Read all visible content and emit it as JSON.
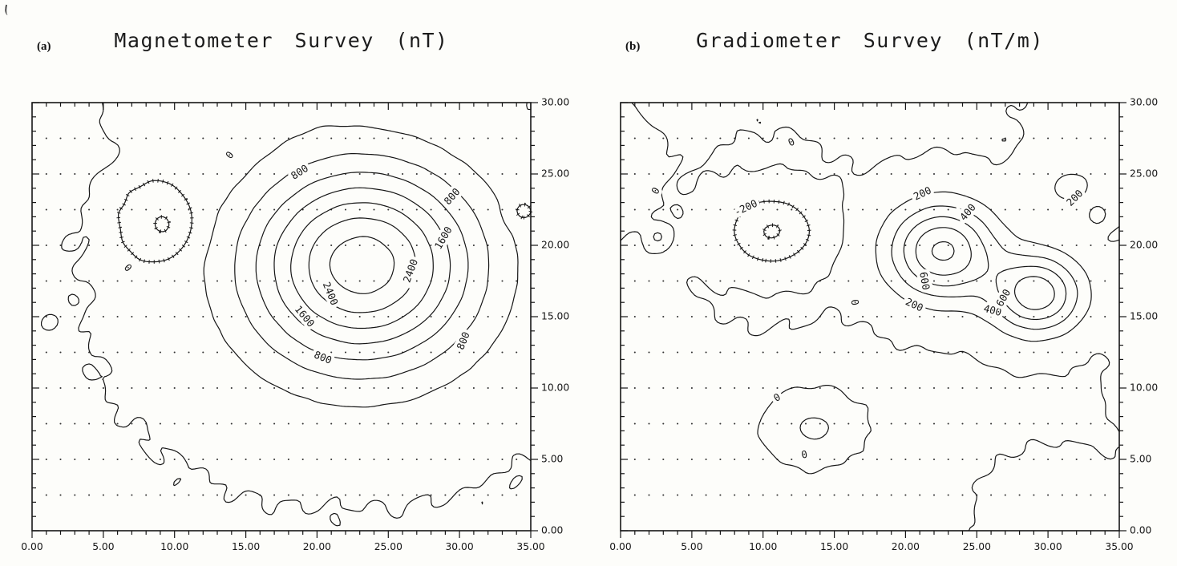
{
  "colors": {
    "ink": "#161616",
    "paper": "#fdfdfa",
    "dot": "#333333"
  },
  "chart_data": [
    {
      "type": "contour",
      "panel_label": "(a)",
      "title": "Magnetometer Survey (nT)",
      "units": "nT",
      "xlabel": "",
      "ylabel": "",
      "xlim": [
        0,
        35
      ],
      "ylim": [
        0,
        30
      ],
      "xtick_major": [
        0,
        5,
        10,
        15,
        20,
        25,
        30,
        35
      ],
      "xtick_labels": [
        "0.00",
        "5.00",
        "10.00",
        "15.00",
        "20.00",
        "25.00",
        "30.00",
        "35.00"
      ],
      "ytick_major": [
        0,
        5,
        10,
        15,
        20,
        25,
        30
      ],
      "ytick_labels": [
        "0.00",
        "5.00",
        "10.00",
        "15.00",
        "20.00",
        "25.00",
        "30.00"
      ],
      "tick_minor_step": 1,
      "contour_interval": 400,
      "levels": [
        -400,
        0,
        400,
        800,
        1200,
        1600,
        2000,
        2400,
        2800
      ],
      "labeled_levels": [
        0,
        800,
        1600,
        2400
      ],
      "hachure_at_or_below": 0,
      "station_grid": {
        "x_start": 1,
        "x_end": 34,
        "x_step": 1,
        "y_start": 2.5,
        "y_end": 27.5,
        "y_step": 2.5
      },
      "field_background": -15,
      "noise_amp": 8,
      "anomaly_sources": [
        {
          "name": "main-positive-anomaly",
          "x": 23.2,
          "y": 18.8,
          "amp": 2950,
          "sx": 5.4,
          "sy": 4.7
        },
        {
          "name": "broad-south-base",
          "x": 22.0,
          "y": 13.5,
          "amp": 200,
          "sx": 7.5,
          "sy": 5.0
        },
        {
          "name": "west-depression",
          "x": 9.3,
          "y": 21.4,
          "amp": -660,
          "sx": 1.55,
          "sy": 1.6
        },
        {
          "name": "west-pedestal",
          "x": 9.0,
          "y": 21.4,
          "amp": 145,
          "sx": 2.4,
          "sy": 2.4
        },
        {
          "name": "north-bump",
          "x": 19.0,
          "y": 31.5,
          "amp": 150,
          "sx": 3.0,
          "sy": 3.0
        },
        {
          "name": "northwest-bump",
          "x": 9.5,
          "y": 31.5,
          "amp": 130,
          "sx": 2.5,
          "sy": 2.5
        },
        {
          "name": "west-spot",
          "x": 2.8,
          "y": 20.2,
          "amp": 45,
          "sx": 0.3,
          "sy": 0.3
        },
        {
          "name": "east-edge-low",
          "x": 34.3,
          "y": 22.3,
          "amp": -320,
          "sx": 0.7,
          "sy": 0.7
        },
        {
          "name": "tiny-west-spot",
          "x": 1.3,
          "y": 14.6,
          "amp": 45,
          "sx": 0.3,
          "sy": 0.3
        }
      ],
      "contour_labels": [
        {
          "text": "0",
          "x": 13.9,
          "y": 26.3,
          "rot": -52
        },
        {
          "text": "800",
          "x": 18.8,
          "y": 25.1,
          "rot": -33
        },
        {
          "text": "800",
          "x": 29.5,
          "y": 23.4,
          "rot": -48
        },
        {
          "text": "1600",
          "x": 28.9,
          "y": 20.5,
          "rot": -60
        },
        {
          "text": "2400",
          "x": 26.6,
          "y": 18.2,
          "rot": -70
        },
        {
          "text": "2400",
          "x": 20.9,
          "y": 16.6,
          "rot": 68
        },
        {
          "text": "1600",
          "x": 19.1,
          "y": 15.0,
          "rot": 50
        },
        {
          "text": "800",
          "x": 20.4,
          "y": 12.1,
          "rot": 22
        },
        {
          "text": "800",
          "x": 30.3,
          "y": 13.3,
          "rot": -68
        },
        {
          "text": "0",
          "x": 6.7,
          "y": 18.4,
          "rot": 46
        }
      ]
    },
    {
      "type": "contour",
      "panel_label": "(b)",
      "title": "Gradiometer Survey (nT/m)",
      "units": "nT/m",
      "xlabel": "",
      "ylabel": "",
      "xlim": [
        0,
        35
      ],
      "ylim": [
        0,
        30
      ],
      "xtick_major": [
        0,
        5,
        10,
        15,
        20,
        25,
        30,
        35
      ],
      "xtick_labels": [
        "0.00",
        "5.00",
        "10.00",
        "15.00",
        "20.00",
        "25.00",
        "30.00",
        "35.00"
      ],
      "ytick_major": [
        0,
        5,
        10,
        15,
        20,
        25,
        30
      ],
      "ytick_labels": [
        "0.00",
        "5.00",
        "10.00",
        "15.00",
        "20.00",
        "25.00",
        "30.00"
      ],
      "tick_minor_step": 1,
      "contour_interval": 200,
      "levels": [
        -400,
        -200,
        0,
        200,
        400,
        600,
        800,
        1000
      ],
      "labeled_levels": [
        -200,
        0,
        200,
        400,
        600
      ],
      "hachure_at_or_below": -200,
      "station_grid": {
        "x_start": 1,
        "x_end": 34,
        "x_step": 1,
        "y_start": 2.5,
        "y_end": 27.5,
        "y_step": 2.5
      },
      "field_background": -10,
      "noise_amp": 5,
      "anomaly_sources": [
        {
          "name": "west-peak",
          "x": 22.6,
          "y": 19.6,
          "amp": 1050,
          "sx": 2.6,
          "sy": 2.3
        },
        {
          "name": "east-peak",
          "x": 29.2,
          "y": 16.6,
          "amp": 950,
          "sx": 2.2,
          "sy": 1.9
        },
        {
          "name": "west-depression",
          "x": 10.6,
          "y": 21.0,
          "amp": -520,
          "sx": 2.3,
          "sy": 1.9
        },
        {
          "name": "depression-pedestal",
          "x": 10.6,
          "y": 21.0,
          "amp": 115,
          "sx": 3.2,
          "sy": 3.2
        },
        {
          "name": "northeast-ridge",
          "x": 31.5,
          "y": 24.0,
          "amp": 240,
          "sx": 1.6,
          "sy": 1.2
        },
        {
          "name": "northeast-corner",
          "x": 35.5,
          "y": 28.5,
          "amp": 180,
          "sx": 3.2,
          "sy": 2.8
        },
        {
          "name": "northeast-small-low",
          "x": 33.4,
          "y": 22.3,
          "amp": -150,
          "sx": 0.35,
          "sy": 0.35
        },
        {
          "name": "west-spot",
          "x": 2.6,
          "y": 20.6,
          "amp": 260,
          "sx": 0.42,
          "sy": 0.42
        },
        {
          "name": "northwest-edge",
          "x": -1.5,
          "y": 25.5,
          "amp": 150,
          "sx": 2.0,
          "sy": 2.2
        },
        {
          "name": "south-blob",
          "x": 13.6,
          "y": 7.2,
          "amp": 260,
          "sx": 1.5,
          "sy": 1.15
        },
        {
          "name": "southeast-corner",
          "x": 31.0,
          "y": 1.0,
          "amp": 170,
          "sx": 2.6,
          "sy": 2.2
        },
        {
          "name": "east-edge-mid",
          "x": 35.8,
          "y": 15.0,
          "amp": 140,
          "sx": 0.9,
          "sy": 1.1
        },
        {
          "name": "east-edge-low",
          "x": 36.5,
          "y": 9.5,
          "amp": 130,
          "sx": 1.2,
          "sy": 1.4
        }
      ],
      "contour_labels": [
        {
          "text": "0",
          "x": 12.0,
          "y": 27.2,
          "rot": -25
        },
        {
          "text": "0",
          "x": 2.5,
          "y": 23.8,
          "rot": -60
        },
        {
          "text": "-200",
          "x": 8.8,
          "y": 22.6,
          "rot": -25
        },
        {
          "text": "200",
          "x": 21.2,
          "y": 23.6,
          "rot": -25
        },
        {
          "text": "400",
          "x": 24.4,
          "y": 22.3,
          "rot": -50
        },
        {
          "text": "200",
          "x": 31.9,
          "y": 23.3,
          "rot": -45
        },
        {
          "text": "600",
          "x": 21.3,
          "y": 17.5,
          "rot": 80
        },
        {
          "text": "0",
          "x": 16.4,
          "y": 16.0,
          "rot": 80
        },
        {
          "text": "200",
          "x": 20.6,
          "y": 15.8,
          "rot": 25
        },
        {
          "text": "400",
          "x": 26.1,
          "y": 15.4,
          "rot": 15
        },
        {
          "text": "600",
          "x": 26.9,
          "y": 16.3,
          "rot": -60
        },
        {
          "text": "0",
          "x": 11.0,
          "y": 9.3,
          "rot": -30
        },
        {
          "text": "0",
          "x": 12.9,
          "y": 5.3,
          "rot": -10
        }
      ]
    }
  ]
}
